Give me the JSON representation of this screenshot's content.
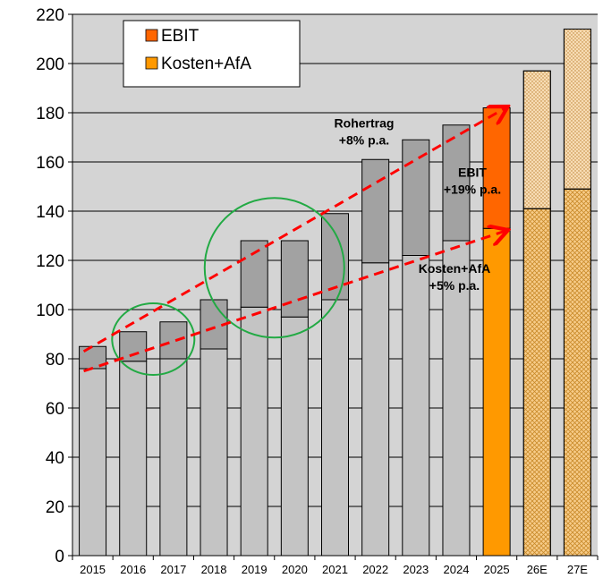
{
  "chart_data": {
    "type": "bar",
    "stacked": true,
    "categories": [
      "2015",
      "2016",
      "2017",
      "2018",
      "2019",
      "2020",
      "2021",
      "2022",
      "2023",
      "2024",
      "2025",
      "26E",
      "27E"
    ],
    "series": [
      {
        "name": "Kosten+AfA",
        "values": [
          76,
          79,
          80,
          84,
          101,
          97,
          104,
          119,
          122,
          128,
          133,
          141,
          149
        ]
      },
      {
        "name": "EBIT",
        "values": [
          9,
          12,
          15,
          20,
          27,
          31,
          35,
          42,
          47,
          47,
          49,
          56,
          65
        ]
      }
    ],
    "ylim": [
      0,
      220
    ],
    "yticks": [
      0,
      20,
      40,
      60,
      80,
      100,
      120,
      140,
      160,
      180,
      200,
      220
    ],
    "grid": true,
    "legend": "top-left",
    "colors": {
      "plot_bg": "#d4d4d4",
      "hist_bottom": "#c4c4c4",
      "hist_top": "#a2a2a2",
      "ebit": "#ff6600",
      "kosten": "#ff9900",
      "estimate_bottom": "#f7cc8a",
      "estimate_top": "#f7dcb4",
      "arrow": "#ff0000",
      "circle": "#22aa44"
    },
    "annotations": [
      {
        "id": "rohertrag",
        "lines": [
          "Rohertrag",
          "+8% p.a."
        ]
      },
      {
        "id": "ebit",
        "lines": [
          "EBIT",
          "+19% p.a."
        ]
      },
      {
        "id": "kosten",
        "lines": [
          "Kosten+AfA",
          "+5% p.a."
        ]
      }
    ]
  }
}
